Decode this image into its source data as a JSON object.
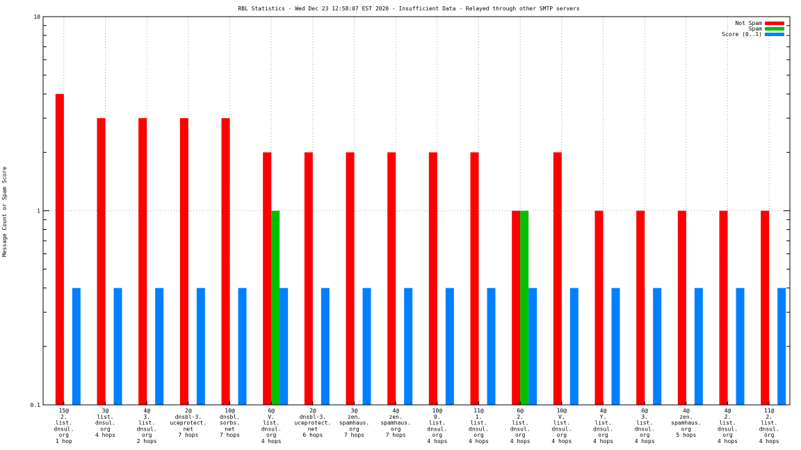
{
  "chart_data": {
    "type": "bar",
    "title": "RBL Statistics - Wed Dec 23 12:58:07 EST 2020 - Insufficient Data - Relayed through other SMTP servers",
    "ylabel": "Message Count or Spam Score",
    "xlabel": "",
    "yscale": "log",
    "ylim": [
      0.1,
      10
    ],
    "yticks": [
      "0.1",
      "1",
      "10"
    ],
    "grid": true,
    "legend_position": "top-right",
    "categories": [
      [
        "15@",
        "2.",
        "list.",
        "dnsul.",
        "org",
        "1 hop"
      ],
      [
        "3@",
        "list.",
        "dnsul.",
        "org",
        "4 hops"
      ],
      [
        "4@",
        "3.",
        "list.",
        "dnsul.",
        "org",
        "2 hops"
      ],
      [
        "2@",
        "dnsbl-3.",
        "uceprotect.",
        "net",
        "7 hops"
      ],
      [
        "10@",
        "dnsbl.",
        "sorbs.",
        "net",
        "7 hops"
      ],
      [
        "6@",
        "V.",
        "list.",
        "dnsul.",
        "org",
        "4 hops"
      ],
      [
        "2@",
        "dnsbl-3.",
        "uceprotect.",
        "net",
        "6 hops"
      ],
      [
        "3@",
        "zen.",
        "spamhaus.",
        "org",
        "7 hops"
      ],
      [
        "4@",
        "zen.",
        "spamhaus.",
        "org",
        "7 hops"
      ],
      [
        "10@",
        "0.",
        "list.",
        "dnsul.",
        "org",
        "4 hops"
      ],
      [
        "11@",
        "1.",
        "list.",
        "dnsul.",
        "org",
        "4 hops"
      ],
      [
        "6@",
        "2.",
        "list.",
        "dnsul.",
        "org",
        "4 hops"
      ],
      [
        "10@",
        "V.",
        "list.",
        "dnsul.",
        "org",
        "4 hops"
      ],
      [
        "4@",
        "Y.",
        "list.",
        "dnsul.",
        "org",
        "4 hops"
      ],
      [
        "6@",
        "3.",
        "list.",
        "dnsul.",
        "org",
        "4 hops"
      ],
      [
        "4@",
        "zen.",
        "spamhaus.",
        "org",
        "5 hops"
      ],
      [
        "4@",
        "2.",
        "list.",
        "dnsul.",
        "org",
        "4 hops"
      ],
      [
        "11@",
        "2.",
        "list.",
        "dnsul.",
        "org",
        "4 hops"
      ]
    ],
    "series": [
      {
        "name": "Not Spam",
        "color": "#ff0000",
        "values": [
          4,
          3,
          3,
          3,
          3,
          2,
          2,
          2,
          2,
          2,
          2,
          1,
          2,
          1,
          1,
          1,
          1,
          1
        ]
      },
      {
        "name": "Spam",
        "color": "#00c000",
        "values": [
          0,
          0,
          0,
          0,
          0,
          1,
          0,
          0,
          0,
          0,
          0,
          1,
          0,
          0,
          0,
          0,
          0,
          0
        ]
      },
      {
        "name": "Score (0..1)",
        "color": "#0080ff",
        "values": [
          0.4,
          0.4,
          0.4,
          0.4,
          0.4,
          0.4,
          0.4,
          0.4,
          0.4,
          0.4,
          0.4,
          0.4,
          0.4,
          0.4,
          0.4,
          0.4,
          0.4,
          0.4
        ]
      }
    ]
  }
}
